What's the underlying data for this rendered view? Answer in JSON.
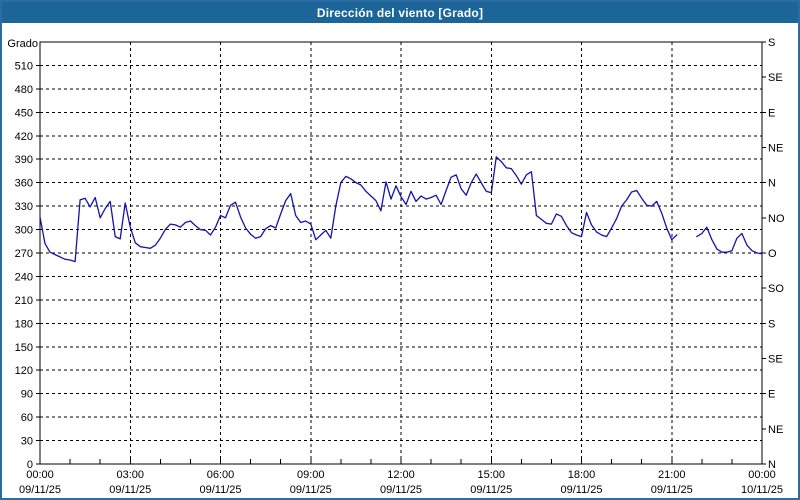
{
  "window": {
    "title": "Dirección del viento [Grado]"
  },
  "colors": {
    "title_bar_bg": "#1b6598",
    "title_text": "#ffffff",
    "window_border": "#2b6ca3",
    "plot_bg": "#ffffff",
    "grid": "#000000",
    "axis": "#000000",
    "series_line": "#1414aa"
  },
  "chart_data": {
    "type": "line",
    "title": "Dirección del viento [Grado]",
    "ylabel": "Grado",
    "ylim": [
      0,
      540
    ],
    "grid": "dashed",
    "legend_position": "none",
    "y_left_ticks": [
      0,
      30,
      60,
      90,
      120,
      150,
      180,
      210,
      240,
      270,
      300,
      330,
      360,
      390,
      420,
      450,
      480,
      510
    ],
    "y_right_ticks": [
      {
        "value": 0,
        "label": "N"
      },
      {
        "value": 45,
        "label": "NE"
      },
      {
        "value": 90,
        "label": "E"
      },
      {
        "value": 135,
        "label": "SE"
      },
      {
        "value": 180,
        "label": "S"
      },
      {
        "value": 225,
        "label": "SO"
      },
      {
        "value": 270,
        "label": "O"
      },
      {
        "value": 315,
        "label": "NO"
      },
      {
        "value": 360,
        "label": "N"
      },
      {
        "value": 405,
        "label": "NE"
      },
      {
        "value": 450,
        "label": "E"
      },
      {
        "value": 495,
        "label": "SE"
      },
      {
        "value": 540,
        "label": "S"
      }
    ],
    "xlim_hours": [
      0,
      24
    ],
    "x_minor_tick_hours": 1,
    "x_major_ticks": [
      {
        "hour": 0,
        "time": "00:00",
        "date": "09/11/25"
      },
      {
        "hour": 3,
        "time": "03:00",
        "date": "09/11/25"
      },
      {
        "hour": 6,
        "time": "06:00",
        "date": "09/11/25"
      },
      {
        "hour": 9,
        "time": "09:00",
        "date": "09/11/25"
      },
      {
        "hour": 12,
        "time": "12:00",
        "date": "09/11/25"
      },
      {
        "hour": 15,
        "time": "15:00",
        "date": "09/11/25"
      },
      {
        "hour": 18,
        "time": "18:00",
        "date": "09/11/25"
      },
      {
        "hour": 21,
        "time": "21:00",
        "date": "09/11/25"
      },
      {
        "hour": 24,
        "time": "00:00",
        "date": "10/11/25"
      }
    ],
    "series": [
      {
        "name": "Dirección del viento [Grado]",
        "color": "#1414aa",
        "start_hour": 0,
        "interval_minutes": 10,
        "values": [
          316,
          282,
          271,
          268,
          265,
          262,
          261,
          259,
          338,
          340,
          329,
          341,
          315,
          327,
          336,
          291,
          288,
          334,
          303,
          283,
          278,
          277,
          276,
          280,
          289,
          300,
          307,
          306,
          303,
          309,
          311,
          305,
          300,
          299,
          293,
          303,
          318,
          315,
          331,
          335,
          316,
          302,
          294,
          289,
          291,
          301,
          305,
          302,
          320,
          337,
          346,
          318,
          309,
          311,
          307,
          287,
          293,
          299,
          289,
          330,
          360,
          368,
          365,
          360,
          357,
          349,
          343,
          337,
          324,
          361,
          339,
          356,
          342,
          332,
          349,
          336,
          343,
          339,
          341,
          344,
          332,
          350,
          367,
          370,
          352,
          344,
          360,
          371,
          360,
          349,
          347,
          393,
          387,
          379,
          378,
          369,
          358,
          370,
          374,
          318,
          313,
          308,
          307,
          320,
          317,
          305,
          296,
          293,
          291,
          322,
          306,
          297,
          293,
          291,
          302,
          314,
          330,
          338,
          348,
          350,
          340,
          331,
          330,
          336,
          321,
          302,
          287,
          293,
          null,
          null,
          null,
          291,
          295,
          303,
          287,
          275,
          271,
          271,
          273,
          289,
          295,
          280,
          273,
          270,
          269
        ]
      }
    ]
  }
}
